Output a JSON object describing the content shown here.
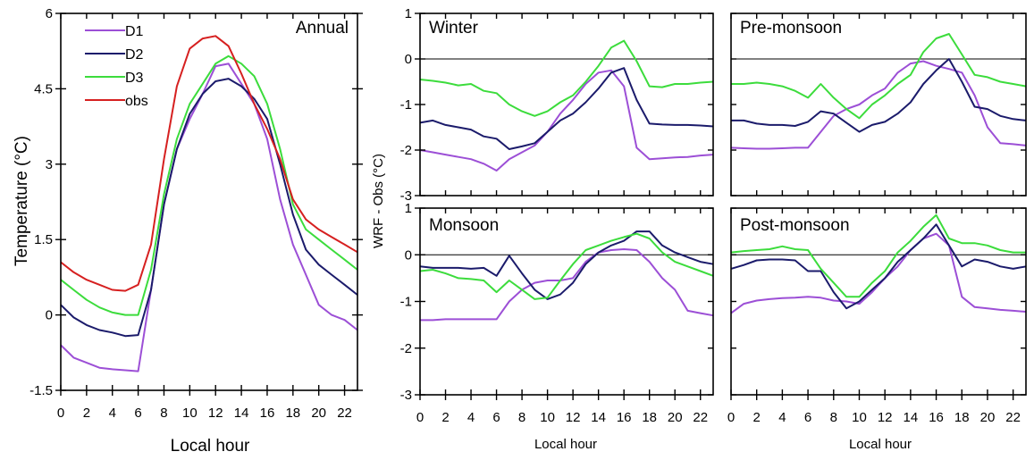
{
  "colors": {
    "D1": "#9c4fd6",
    "D2": "#1b1b6b",
    "D3": "#3cdc3c",
    "obs": "#d62020",
    "frame": "#000000",
    "zero": "#000000"
  },
  "chart_data": [
    {
      "id": "annual",
      "type": "line",
      "title": "Annual",
      "xlabel": "Local hour",
      "ylabel": "Temperature (°C)",
      "xlim": [
        0,
        23
      ],
      "ylim": [
        -1.5,
        6
      ],
      "xticks": [
        "0",
        "2",
        "4",
        "6",
        "8",
        "10",
        "12",
        "14",
        "16",
        "18",
        "20",
        "22"
      ],
      "yticks": [
        "-1.5",
        "0",
        "1.5",
        "3",
        "4.5",
        "6"
      ],
      "legend": [
        "D1",
        "D2",
        "D3",
        "obs"
      ],
      "x": [
        0,
        1,
        2,
        3,
        4,
        5,
        6,
        7,
        8,
        9,
        10,
        11,
        12,
        13,
        14,
        15,
        16,
        17,
        18,
        19,
        20,
        21,
        22,
        23
      ],
      "series": [
        {
          "name": "D1",
          "values": [
            -0.6,
            -0.85,
            -0.95,
            -1.05,
            -1.08,
            -1.1,
            -1.12,
            0.5,
            2.2,
            3.3,
            3.9,
            4.4,
            4.95,
            5.0,
            4.6,
            4.2,
            3.5,
            2.3,
            1.4,
            0.8,
            0.2,
            0.0,
            -0.1,
            -0.3
          ]
        },
        {
          "name": "D2",
          "values": [
            0.2,
            -0.05,
            -0.2,
            -0.3,
            -0.35,
            -0.42,
            -0.4,
            0.5,
            2.2,
            3.3,
            4.0,
            4.4,
            4.65,
            4.7,
            4.55,
            4.3,
            3.9,
            3.0,
            2.0,
            1.3,
            1.0,
            0.8,
            0.6,
            0.4
          ]
        },
        {
          "name": "D3",
          "values": [
            0.7,
            0.5,
            0.3,
            0.15,
            0.05,
            0.0,
            0.0,
            0.9,
            2.4,
            3.5,
            4.2,
            4.6,
            5.0,
            5.15,
            5.0,
            4.75,
            4.2,
            3.3,
            2.2,
            1.7,
            1.5,
            1.3,
            1.1,
            0.9
          ]
        },
        {
          "name": "obs",
          "values": [
            1.05,
            0.85,
            0.7,
            0.6,
            0.5,
            0.48,
            0.6,
            1.4,
            3.1,
            4.55,
            5.3,
            5.5,
            5.55,
            5.35,
            4.8,
            4.2,
            3.7,
            3.1,
            2.3,
            1.9,
            1.7,
            1.55,
            1.4,
            1.25
          ]
        }
      ]
    },
    {
      "id": "winter",
      "type": "line",
      "title": "Winter",
      "xlim": [
        0,
        23
      ],
      "ylim": [
        -3,
        1
      ],
      "yticks": [
        "1",
        "0",
        "-1",
        "-2",
        "-3"
      ],
      "x": [
        0,
        1,
        2,
        3,
        4,
        5,
        6,
        7,
        8,
        9,
        10,
        11,
        12,
        13,
        14,
        15,
        16,
        17,
        18,
        19,
        20,
        21,
        22,
        23
      ],
      "series": [
        {
          "name": "D1",
          "values": [
            -2.0,
            -2.05,
            -2.1,
            -2.15,
            -2.2,
            -2.3,
            -2.45,
            -2.2,
            -2.05,
            -1.9,
            -1.6,
            -1.2,
            -0.9,
            -0.55,
            -0.3,
            -0.25,
            -0.6,
            -1.95,
            -2.2,
            -2.18,
            -2.16,
            -2.15,
            -2.12,
            -2.1
          ]
        },
        {
          "name": "D2",
          "values": [
            -1.4,
            -1.35,
            -1.45,
            -1.5,
            -1.55,
            -1.7,
            -1.75,
            -1.98,
            -1.92,
            -1.85,
            -1.6,
            -1.35,
            -1.2,
            -0.95,
            -0.65,
            -0.3,
            -0.2,
            -0.9,
            -1.42,
            -1.44,
            -1.45,
            -1.45,
            -1.46,
            -1.48
          ]
        },
        {
          "name": "D3",
          "values": [
            -0.45,
            -0.48,
            -0.52,
            -0.58,
            -0.55,
            -0.7,
            -0.75,
            -1.0,
            -1.15,
            -1.25,
            -1.15,
            -0.95,
            -0.8,
            -0.5,
            -0.15,
            0.25,
            0.4,
            -0.05,
            -0.6,
            -0.62,
            -0.55,
            -0.55,
            -0.52,
            -0.5
          ]
        }
      ]
    },
    {
      "id": "pre-monsoon",
      "type": "line",
      "title": "Pre-monsoon",
      "xlim": [
        0,
        23
      ],
      "ylim": [
        -3,
        1
      ],
      "x": [
        0,
        1,
        2,
        3,
        4,
        5,
        6,
        7,
        8,
        9,
        10,
        11,
        12,
        13,
        14,
        15,
        16,
        17,
        18,
        19,
        20,
        21,
        22,
        23
      ],
      "series": [
        {
          "name": "D1",
          "values": [
            -1.95,
            -1.96,
            -1.97,
            -1.97,
            -1.96,
            -1.95,
            -1.95,
            -1.6,
            -1.25,
            -1.1,
            -1.0,
            -0.8,
            -0.65,
            -0.3,
            -0.1,
            -0.05,
            -0.15,
            -0.22,
            -0.3,
            -0.8,
            -1.5,
            -1.85,
            -1.87,
            -1.9
          ]
        },
        {
          "name": "D2",
          "values": [
            -1.35,
            -1.35,
            -1.42,
            -1.45,
            -1.45,
            -1.47,
            -1.38,
            -1.15,
            -1.2,
            -1.4,
            -1.6,
            -1.45,
            -1.38,
            -1.2,
            -0.95,
            -0.55,
            -0.25,
            0.0,
            -0.5,
            -1.05,
            -1.1,
            -1.25,
            -1.32,
            -1.35
          ]
        },
        {
          "name": "D3",
          "values": [
            -0.55,
            -0.55,
            -0.52,
            -0.55,
            -0.6,
            -0.7,
            -0.85,
            -0.55,
            -0.85,
            -1.1,
            -1.3,
            -1.0,
            -0.8,
            -0.55,
            -0.35,
            0.15,
            0.45,
            0.55,
            0.1,
            -0.35,
            -0.4,
            -0.5,
            -0.55,
            -0.6
          ]
        }
      ]
    },
    {
      "id": "monsoon",
      "type": "line",
      "title": "Monsoon",
      "xlim": [
        0,
        23
      ],
      "ylim": [
        -3,
        1
      ],
      "yticks": [
        "1",
        "0",
        "-1",
        "-2",
        "-3"
      ],
      "x": [
        0,
        1,
        2,
        3,
        4,
        5,
        6,
        7,
        8,
        9,
        10,
        11,
        12,
        13,
        14,
        15,
        16,
        17,
        18,
        19,
        20,
        21,
        22,
        23
      ],
      "series": [
        {
          "name": "D1",
          "values": [
            -1.4,
            -1.4,
            -1.38,
            -1.38,
            -1.38,
            -1.38,
            -1.38,
            -1.0,
            -0.75,
            -0.6,
            -0.55,
            -0.55,
            -0.5,
            -0.15,
            0.05,
            0.1,
            0.12,
            0.1,
            -0.15,
            -0.5,
            -0.75,
            -1.2,
            -1.25,
            -1.3
          ]
        },
        {
          "name": "D2",
          "values": [
            -0.25,
            -0.28,
            -0.28,
            -0.28,
            -0.3,
            -0.28,
            -0.45,
            -0.02,
            -0.4,
            -0.75,
            -0.95,
            -0.85,
            -0.6,
            -0.2,
            0.05,
            0.2,
            0.3,
            0.5,
            0.5,
            0.2,
            0.05,
            -0.05,
            -0.15,
            -0.2
          ]
        },
        {
          "name": "D3",
          "values": [
            -0.35,
            -0.32,
            -0.4,
            -0.5,
            -0.52,
            -0.55,
            -0.8,
            -0.55,
            -0.75,
            -0.95,
            -0.92,
            -0.55,
            -0.2,
            0.1,
            0.2,
            0.3,
            0.38,
            0.45,
            0.35,
            0.05,
            -0.15,
            -0.25,
            -0.35,
            -0.45
          ]
        }
      ]
    },
    {
      "id": "post-monsoon",
      "type": "line",
      "title": "Post-monsoon",
      "xlim": [
        0,
        23
      ],
      "ylim": [
        -3,
        1
      ],
      "x": [
        0,
        1,
        2,
        3,
        4,
        5,
        6,
        7,
        8,
        9,
        10,
        11,
        12,
        13,
        14,
        15,
        16,
        17,
        18,
        19,
        20,
        21,
        22,
        23
      ],
      "series": [
        {
          "name": "D1",
          "values": [
            -1.25,
            -1.05,
            -0.98,
            -0.95,
            -0.93,
            -0.92,
            -0.9,
            -0.92,
            -0.98,
            -1.0,
            -1.05,
            -0.8,
            -0.5,
            -0.25,
            0.1,
            0.35,
            0.45,
            0.2,
            -0.9,
            -1.12,
            -1.15,
            -1.18,
            -1.2,
            -1.22
          ]
        },
        {
          "name": "D2",
          "values": [
            -0.3,
            -0.22,
            -0.12,
            -0.1,
            -0.1,
            -0.12,
            -0.35,
            -0.35,
            -0.8,
            -1.15,
            -1.0,
            -0.75,
            -0.5,
            -0.15,
            0.1,
            0.35,
            0.65,
            0.2,
            -0.25,
            -0.1,
            -0.15,
            -0.25,
            -0.3,
            -0.25
          ]
        },
        {
          "name": "D3",
          "values": [
            0.05,
            0.08,
            0.1,
            0.12,
            0.18,
            0.12,
            0.1,
            -0.3,
            -0.6,
            -0.9,
            -0.9,
            -0.6,
            -0.35,
            0.05,
            0.3,
            0.6,
            0.85,
            0.35,
            0.25,
            0.25,
            0.2,
            0.1,
            0.05,
            0.05
          ]
        }
      ]
    }
  ],
  "shared_axes": {
    "right_ylabel": "WRF - Obs (°C)",
    "right_xlabel": "Local hour",
    "right_xticks": [
      "0",
      "2",
      "4",
      "6",
      "8",
      "10",
      "12",
      "14",
      "16",
      "18",
      "20",
      "22"
    ]
  }
}
